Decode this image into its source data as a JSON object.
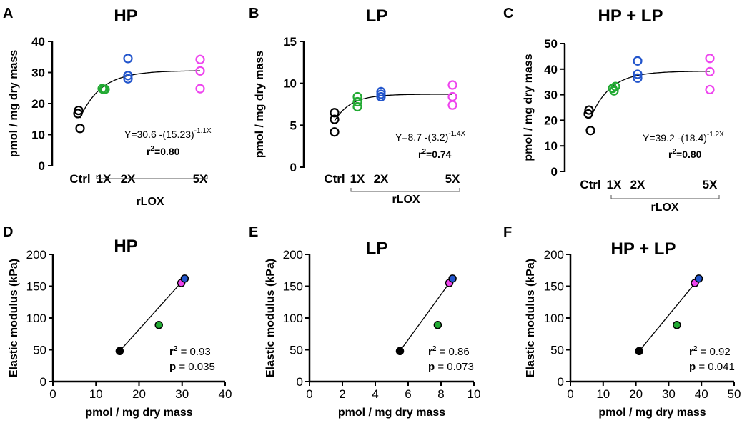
{
  "colors": {
    "ctrl": "#000000",
    "x1": "#22aa33",
    "x2": "#2255cc",
    "x5": "#ee44ee"
  },
  "chart_data": [
    {
      "panel": "A",
      "type": "scatter",
      "title": "HP",
      "ylabel": "pmol / mg dry mass",
      "xlabel": "rLOX",
      "ylim": [
        0,
        40
      ],
      "yticks": [
        0,
        10,
        20,
        30,
        40
      ],
      "categories": [
        "Ctrl",
        "1X",
        "2X",
        "5X"
      ],
      "series": [
        {
          "name": "Ctrl",
          "values": [
            12,
            16.8,
            17.8
          ]
        },
        {
          "name": "1X",
          "values": [
            24.5,
            24.8,
            24.6
          ]
        },
        {
          "name": "2X",
          "values": [
            28,
            29,
            34.5
          ]
        },
        {
          "name": "5X",
          "values": [
            24.8,
            30.5,
            34.2
          ]
        }
      ],
      "fit": {
        "a": 30.6,
        "b": 15.23,
        "k": 1.1
      },
      "equation_lead": "Y=30.6 -(15.23)",
      "equation_exp": "-1.1X",
      "r2_prefix": "r",
      "r2_sup": "2",
      "r2_value": "=0.80"
    },
    {
      "panel": "B",
      "type": "scatter",
      "title": "LP",
      "ylabel": "pmol / mg dry mass",
      "xlabel": "rLOX",
      "ylim": [
        0,
        15
      ],
      "yticks": [
        0,
        5,
        10,
        15
      ],
      "categories": [
        "Ctrl",
        "1X",
        "2X",
        "5X"
      ],
      "series": [
        {
          "name": "Ctrl",
          "values": [
            4.2,
            5.7,
            6.5
          ]
        },
        {
          "name": "1X",
          "values": [
            7.2,
            7.8,
            8.4
          ]
        },
        {
          "name": "2X",
          "values": [
            8.4,
            8.7,
            9.0
          ]
        },
        {
          "name": "5X",
          "values": [
            7.4,
            8.4,
            9.8
          ]
        }
      ],
      "fit": {
        "a": 8.7,
        "b": 3.2,
        "k": 1.4
      },
      "equation_lead": "Y=8.7 -(3.2)",
      "equation_exp": "-1.4X",
      "r2_prefix": "r",
      "r2_sup": "2",
      "r2_value": "=0.74"
    },
    {
      "panel": "C",
      "type": "scatter",
      "title": "HP + LP",
      "ylabel": "pmol / mg dry mass",
      "xlabel": "rLOX",
      "ylim": [
        0,
        50
      ],
      "yticks": [
        0,
        10,
        20,
        30,
        40,
        50
      ],
      "categories": [
        "Ctrl",
        "1X",
        "2X",
        "5X"
      ],
      "series": [
        {
          "name": "Ctrl",
          "values": [
            16,
            22.5,
            24
          ]
        },
        {
          "name": "1X",
          "values": [
            31.5,
            32.5,
            33.2
          ]
        },
        {
          "name": "2X",
          "values": [
            36.5,
            38,
            43.2
          ]
        },
        {
          "name": "5X",
          "values": [
            32,
            39,
            44.2
          ]
        }
      ],
      "fit": {
        "a": 39.2,
        "b": 18.4,
        "k": 1.2
      },
      "equation_lead": "Y=39.2 -(18.4)",
      "equation_exp": "-1.2X",
      "r2_prefix": "r",
      "r2_sup": "2",
      "r2_value": "=0.80"
    },
    {
      "panel": "D",
      "type": "scatter",
      "title": "HP",
      "ylabel": "Elastic modulus (kPa)",
      "xlabel": "pmol / mg dry mass",
      "xlim": [
        0,
        40
      ],
      "xticks": [
        0,
        10,
        20,
        30,
        40
      ],
      "ylim": [
        0,
        200
      ],
      "yticks": [
        0,
        50,
        100,
        150,
        200
      ],
      "points": [
        {
          "name": "Ctrl",
          "x": 15.5,
          "y": 48
        },
        {
          "name": "1X",
          "x": 24.6,
          "y": 89
        },
        {
          "name": "5X",
          "x": 29.8,
          "y": 155
        },
        {
          "name": "2X",
          "x": 30.6,
          "y": 162
        }
      ],
      "line": [
        [
          15.5,
          48
        ],
        [
          30.6,
          162
        ]
      ],
      "r2_label": "r",
      "r2_sup": "2",
      "r2_text": " = 0.93",
      "p_label": "p",
      "p_text": " = 0.035"
    },
    {
      "panel": "E",
      "type": "scatter",
      "title": "LP",
      "ylabel": "Elastic modulus (kPa)",
      "xlabel": "pmol / mg dry mass",
      "xlim": [
        0,
        10
      ],
      "xticks": [
        0,
        2,
        4,
        6,
        8,
        10
      ],
      "ylim": [
        0,
        200
      ],
      "yticks": [
        0,
        50,
        100,
        150,
        200
      ],
      "points": [
        {
          "name": "Ctrl",
          "x": 5.5,
          "y": 48
        },
        {
          "name": "1X",
          "x": 7.8,
          "y": 89
        },
        {
          "name": "5X",
          "x": 8.5,
          "y": 155
        },
        {
          "name": "2X",
          "x": 8.7,
          "y": 162
        }
      ],
      "line": [
        [
          5.5,
          48
        ],
        [
          8.7,
          162
        ]
      ],
      "r2_label": "r",
      "r2_sup": "2",
      "r2_text": " = 0.86",
      "p_label": "p",
      "p_text": " = 0.073"
    },
    {
      "panel": "F",
      "type": "scatter",
      "title": "HP + LP",
      "ylabel": "Elastic modulus (kPa)",
      "xlabel": "pmol / mg dry mass",
      "xlim": [
        0,
        50
      ],
      "xticks": [
        0,
        10,
        20,
        30,
        40,
        50
      ],
      "ylim": [
        0,
        200
      ],
      "yticks": [
        0,
        50,
        100,
        150,
        200
      ],
      "points": [
        {
          "name": "Ctrl",
          "x": 21,
          "y": 48
        },
        {
          "name": "1X",
          "x": 32.5,
          "y": 89
        },
        {
          "name": "5X",
          "x": 38,
          "y": 155
        },
        {
          "name": "2X",
          "x": 39.2,
          "y": 162
        }
      ],
      "line": [
        [
          21,
          48
        ],
        [
          39.2,
          162
        ]
      ],
      "r2_label": "r",
      "r2_sup": "2",
      "r2_text": " = 0.92",
      "p_label": "p",
      "p_text": " = 0.041"
    }
  ]
}
